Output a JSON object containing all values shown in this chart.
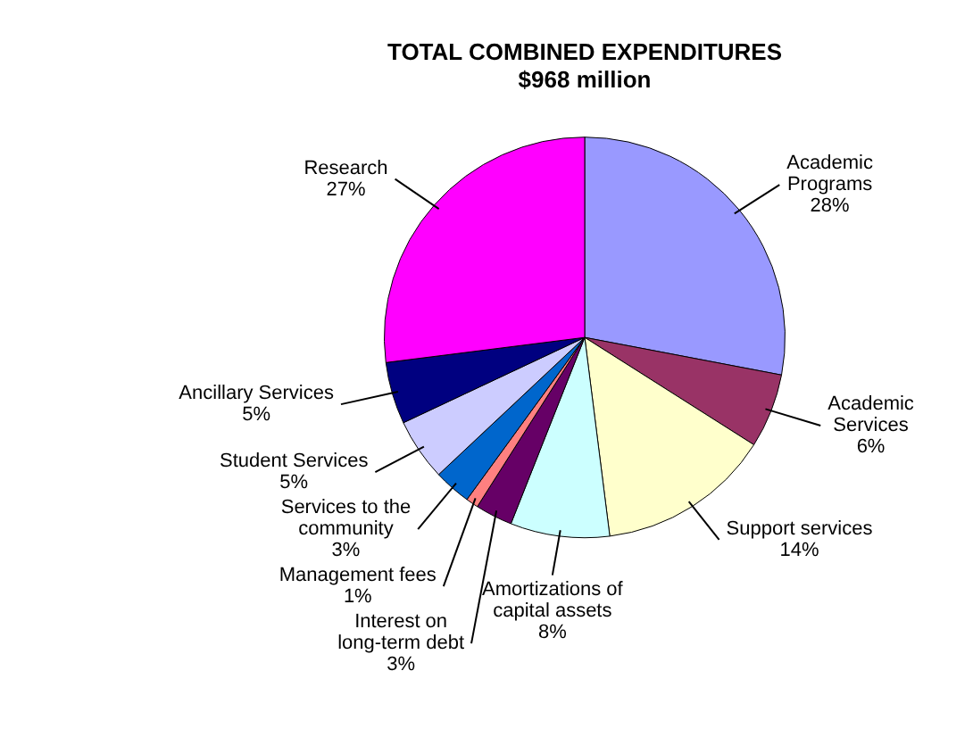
{
  "chart_data": {
    "type": "pie",
    "title": "TOTAL COMBINED EXPENDITURES",
    "subtitle": "$968 million",
    "categories": [
      "Academic Programs",
      "Academic Services",
      "Support services",
      "Amortizations of capital assets",
      "Interest on long-term debt",
      "Management fees",
      "Services to the community",
      "Student Services",
      "Ancillary Services",
      "Research"
    ],
    "values": [
      28,
      6,
      14,
      8,
      3,
      1,
      3,
      5,
      5,
      27
    ],
    "value_labels": [
      "28%",
      "6%",
      "14%",
      "8%",
      "3%",
      "1%",
      "3%",
      "5%",
      "5%",
      "27%"
    ],
    "colors": [
      "#9999ff",
      "#993366",
      "#ffffcc",
      "#ccffff",
      "#660066",
      "#ff8080",
      "#0066cc",
      "#ccccff",
      "#000080",
      "#ff00ff"
    ],
    "legend": false
  }
}
